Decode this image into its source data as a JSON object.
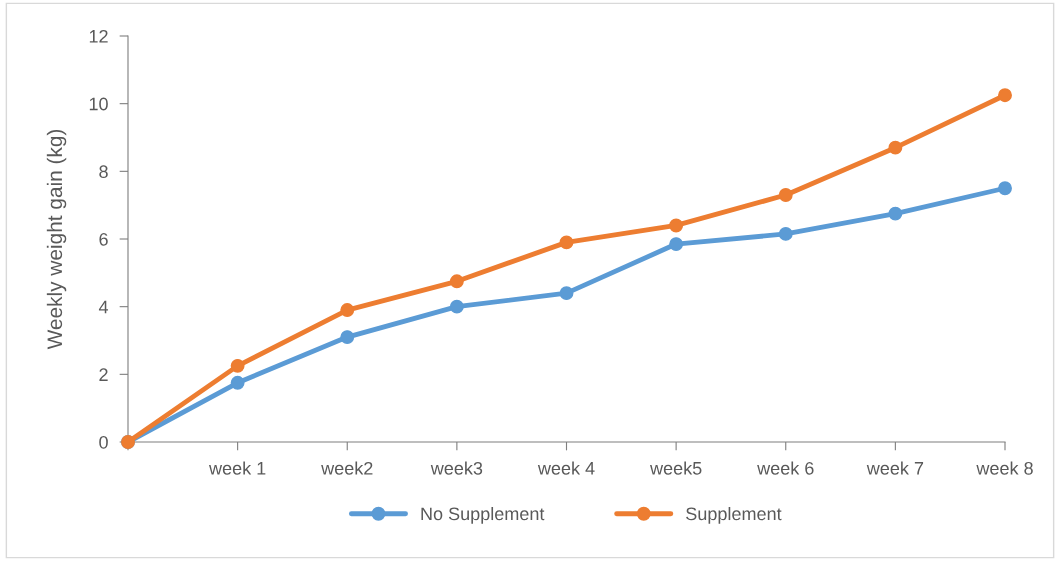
{
  "chart_data": {
    "type": "line",
    "ylabel": "Weekly weight gain (kg)",
    "categories": [
      null,
      "week 1",
      "week2",
      "week3",
      "week 4",
      "week5",
      "week 6",
      "week 7",
      "week 8"
    ],
    "series": [
      {
        "name": "No Supplement",
        "color": "#5b9bd5",
        "values": [
          0,
          1.75,
          3.1,
          4.0,
          4.4,
          5.85,
          6.15,
          6.75,
          7.5
        ]
      },
      {
        "name": "Supplement",
        "color": "#ed7d31",
        "values": [
          0,
          2.25,
          3.9,
          4.75,
          5.9,
          6.4,
          7.3,
          8.7,
          10.25
        ]
      }
    ],
    "ylim": [
      0,
      12
    ],
    "yticks": [
      0,
      2,
      4,
      6,
      8,
      10,
      12
    ],
    "grid": false,
    "legend": "bottom",
    "marker": "circle",
    "line_style": "solid"
  }
}
